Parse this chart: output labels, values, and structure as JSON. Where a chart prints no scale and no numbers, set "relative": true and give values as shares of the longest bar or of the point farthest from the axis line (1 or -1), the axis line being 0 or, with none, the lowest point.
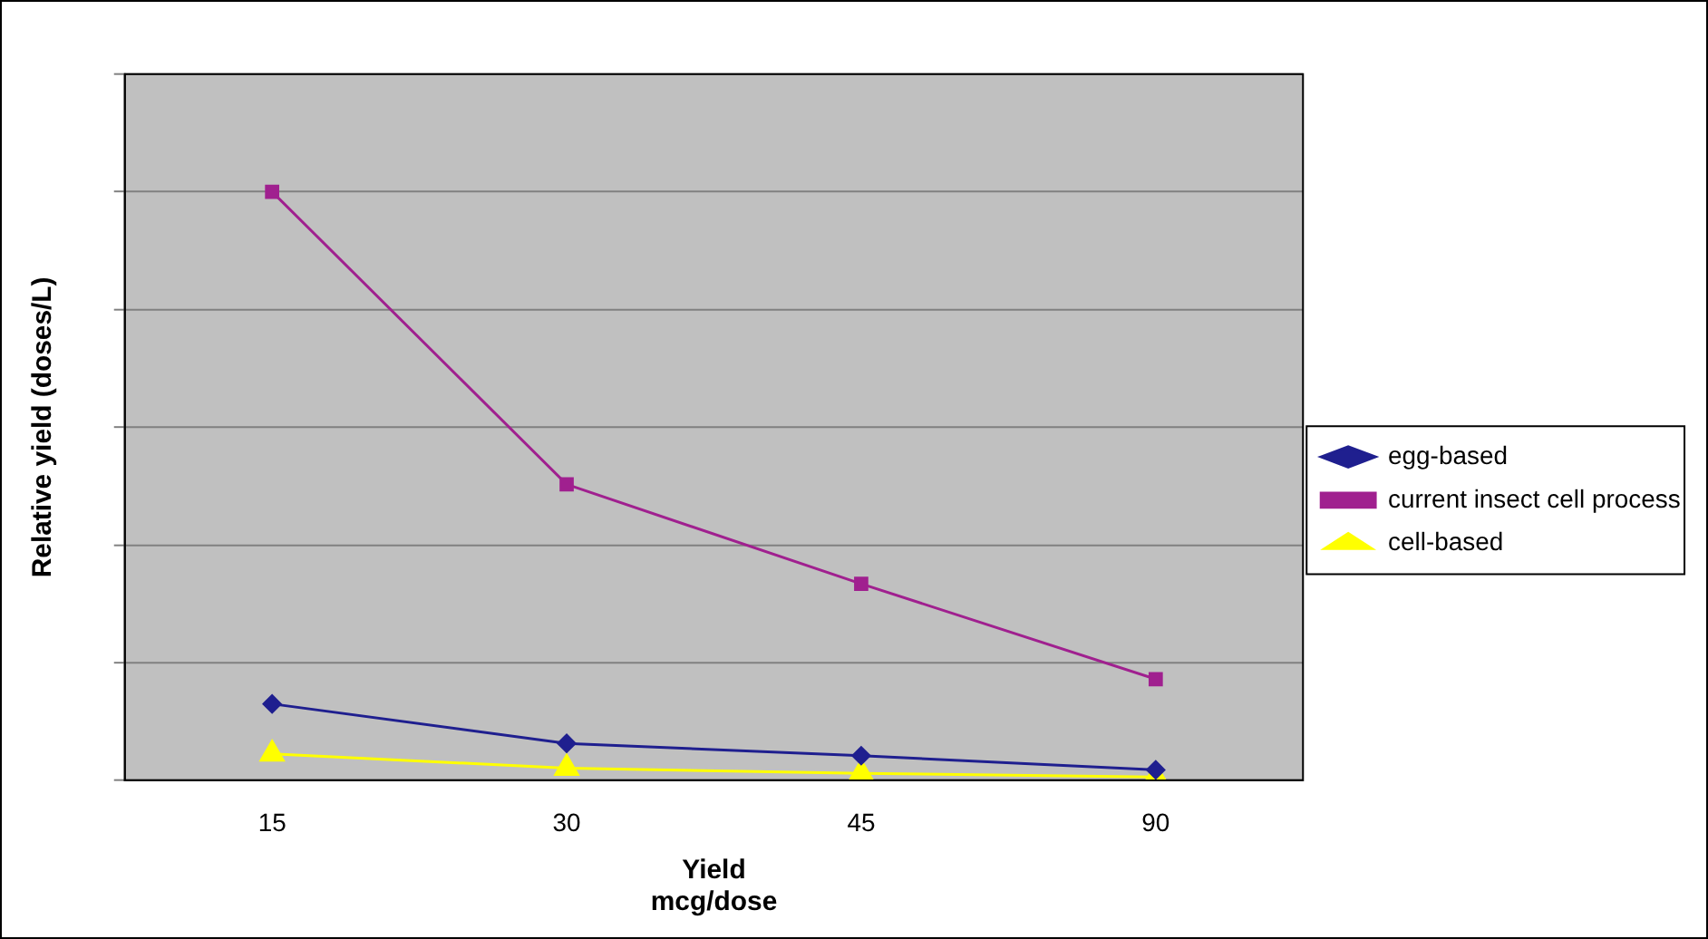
{
  "chart_data": {
    "type": "line",
    "xlabel": "Yield\nmcg/dose",
    "ylabel": "Relative yield (doses/L)",
    "categories": [
      "15",
      "30",
      "45",
      "90"
    ],
    "relative": true,
    "grid": "y",
    "legend": "right",
    "series": [
      {
        "name": "egg-based",
        "color": "#1f1f8f",
        "marker": "diamond",
        "values": [
          0.13,
          0.063,
          0.042,
          0.018
        ]
      },
      {
        "name": "current insect cell process",
        "color": "#a0208f",
        "marker": "square",
        "values": [
          1,
          0.503,
          0.334,
          0.172
        ]
      },
      {
        "name": "cell-based",
        "color": "#ffff00",
        "marker": "triangle",
        "values": [
          0.045,
          0.021,
          0.012,
          0.006
        ]
      }
    ]
  }
}
